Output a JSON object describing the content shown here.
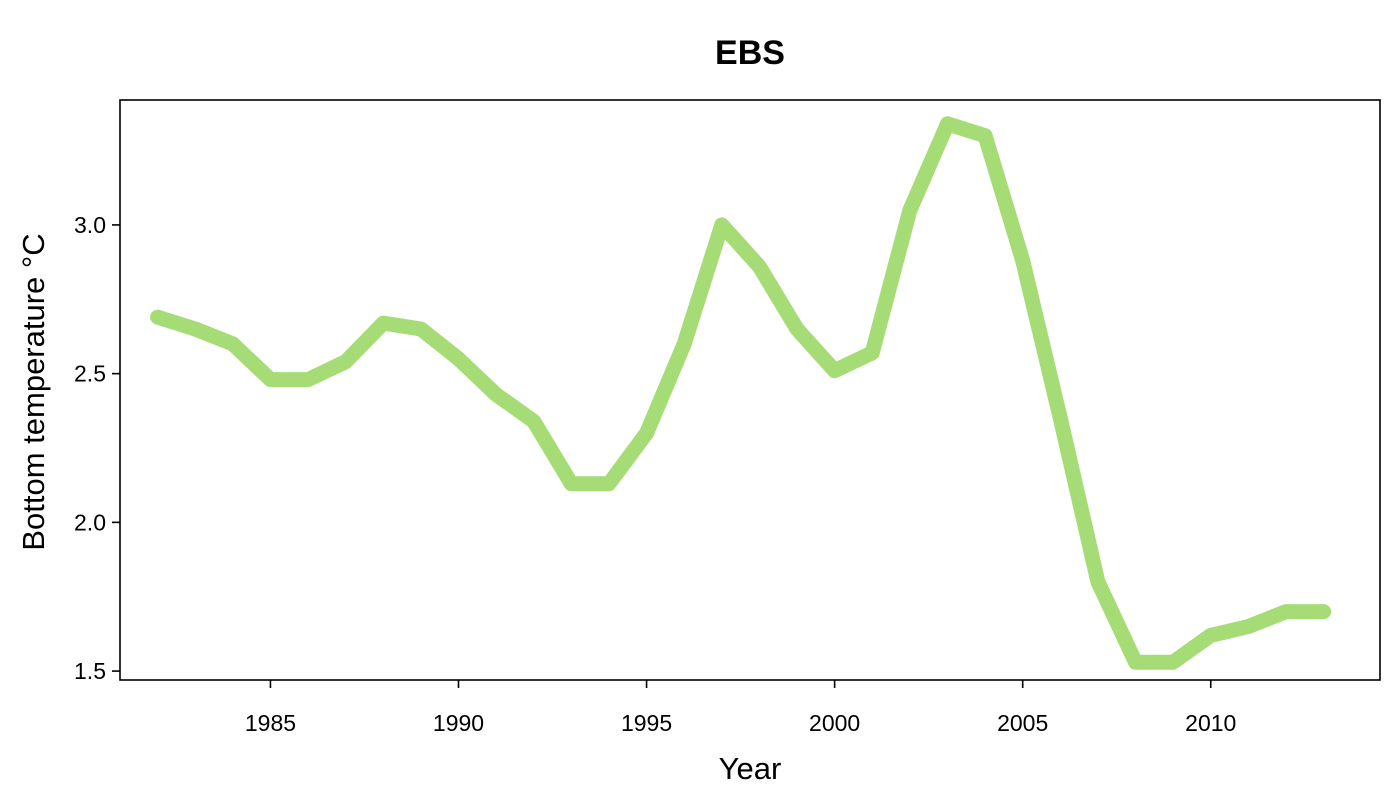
{
  "chart_data": {
    "type": "line",
    "title": "EBS",
    "xlabel": "Year",
    "ylabel": "Bottom temperature °C",
    "xlim": [
      1981.0,
      2014.5
    ],
    "ylim": [
      1.47,
      3.42
    ],
    "xticks": [
      1985,
      1990,
      1995,
      2000,
      2005,
      2010
    ],
    "yticks": [
      1.5,
      2.0,
      2.5,
      3.0
    ],
    "ytick_labels": [
      "1.5",
      "2.0",
      "2.5",
      "3.0"
    ],
    "grid": false,
    "legend": "none",
    "color": "#a6dc75",
    "series": [
      {
        "x": [
          1982,
          1983,
          1984,
          1985,
          1986,
          1987,
          1988,
          1989,
          1990,
          1991,
          1992,
          1993,
          1994,
          1995,
          1996,
          1997,
          1998,
          1999,
          2000,
          2001,
          2002,
          2003,
          2004,
          2005,
          2006,
          2007,
          2008,
          2009,
          2010,
          2011,
          2012,
          2013
        ],
        "y": [
          2.69,
          2.65,
          2.6,
          2.48,
          2.48,
          2.54,
          2.67,
          2.65,
          2.55,
          2.43,
          2.34,
          2.13,
          2.13,
          2.3,
          2.6,
          3.0,
          2.86,
          2.65,
          2.51,
          2.57,
          3.05,
          3.34,
          3.3,
          2.88,
          2.35,
          1.8,
          1.53,
          1.53,
          1.62,
          1.65,
          1.7,
          1.7
        ]
      }
    ]
  }
}
